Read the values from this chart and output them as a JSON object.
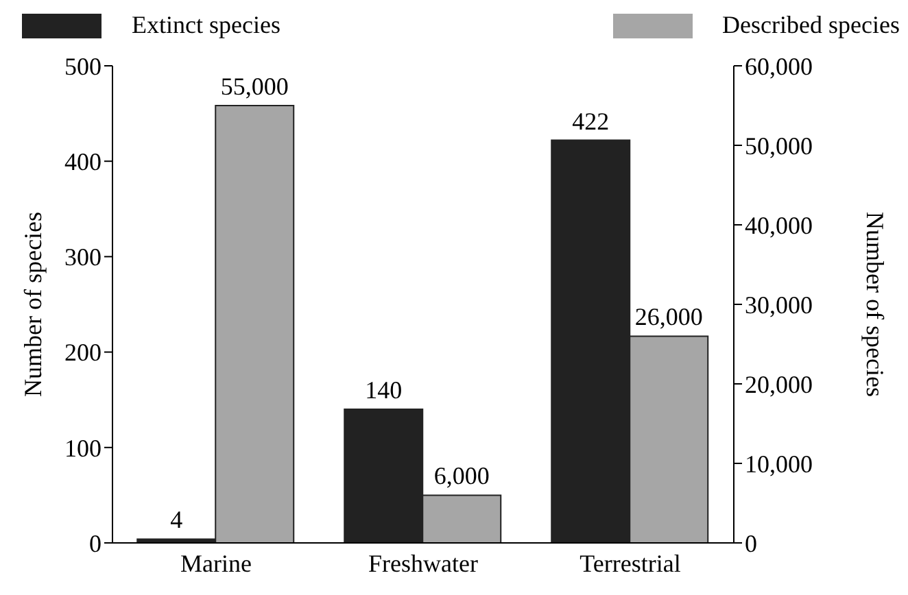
{
  "chart_data": {
    "type": "bar",
    "categories": [
      "Marine",
      "Freshwater",
      "Terrestrial"
    ],
    "series": [
      {
        "name": "Extinct species",
        "color": "#222222",
        "values": [
          4,
          140,
          422
        ],
        "axis": "y",
        "value_labels": [
          "4",
          "140",
          "422"
        ]
      },
      {
        "name": "Described species",
        "color": "#a6a6a6",
        "values": [
          55000,
          6000,
          26000
        ],
        "axis": "y2",
        "value_labels": [
          "55,000",
          "6,000",
          "26,000"
        ]
      }
    ],
    "ylabel": "Number of species",
    "y2label": "Number of species",
    "ylim": [
      0,
      500
    ],
    "yticks": [
      0,
      100,
      200,
      300,
      400,
      500
    ],
    "y2lim": [
      0,
      60000
    ],
    "y2ticks": [
      0,
      {
        "value": 10000,
        "label": "10,000"
      },
      {
        "value": 20000,
        "label": "20,000"
      },
      {
        "value": 30000,
        "label": "30,000"
      },
      {
        "value": 40000,
        "label": "40,000"
      },
      {
        "value": 50000,
        "label": "50,000"
      },
      {
        "value": 60000,
        "label": "60,000"
      }
    ],
    "legend": "top",
    "grid": false
  }
}
